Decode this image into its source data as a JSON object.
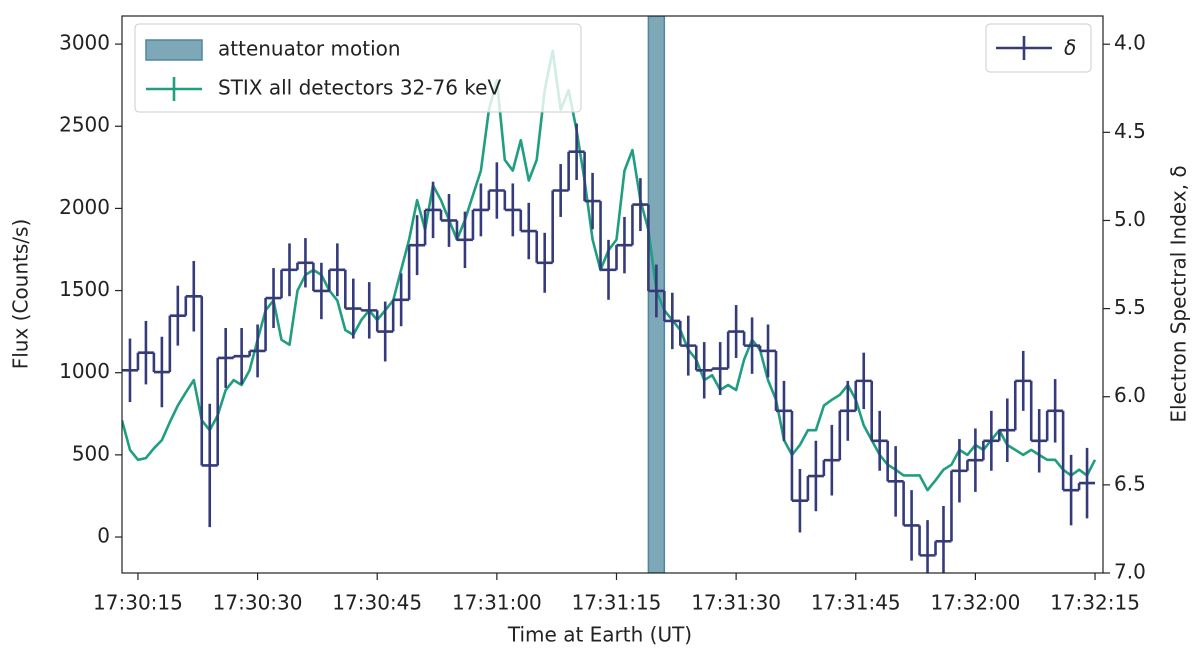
{
  "chart_data": {
    "type": "line",
    "xlabel": "Time at Earth (UT)",
    "ylabel": "Flux (Counts/s)",
    "y2label": "Electron Spectral Index, δ",
    "x": [
      "17:30:13",
      "17:30:14",
      "17:30:15",
      "17:30:16",
      "17:30:17",
      "17:30:18",
      "17:30:19",
      "17:30:20",
      "17:30:21",
      "17:30:22",
      "17:30:23",
      "17:30:24",
      "17:30:25",
      "17:30:26",
      "17:30:27",
      "17:30:28",
      "17:30:29",
      "17:30:30",
      "17:30:31",
      "17:30:32",
      "17:30:33",
      "17:30:34",
      "17:30:35",
      "17:30:36",
      "17:30:37",
      "17:30:38",
      "17:30:39",
      "17:30:40",
      "17:30:41",
      "17:30:42",
      "17:30:43",
      "17:30:44",
      "17:30:45",
      "17:30:46",
      "17:30:47",
      "17:30:48",
      "17:30:49",
      "17:30:50",
      "17:30:51",
      "17:30:52",
      "17:30:53",
      "17:30:54",
      "17:30:55",
      "17:30:56",
      "17:30:57",
      "17:30:58",
      "17:30:59",
      "17:31:00",
      "17:31:01",
      "17:31:02",
      "17:31:03",
      "17:31:04",
      "17:31:05",
      "17:31:06",
      "17:31:07",
      "17:31:08",
      "17:31:09",
      "17:31:10",
      "17:31:11",
      "17:31:12",
      "17:31:13",
      "17:31:14",
      "17:31:15",
      "17:31:16",
      "17:31:17",
      "17:31:18",
      "17:31:19",
      "17:31:20",
      "17:31:21",
      "17:31:22",
      "17:31:23",
      "17:31:24",
      "17:31:25",
      "17:31:26",
      "17:31:27",
      "17:31:28",
      "17:31:29",
      "17:31:30",
      "17:31:31",
      "17:31:32",
      "17:31:33",
      "17:31:34",
      "17:31:35",
      "17:31:36",
      "17:31:37",
      "17:31:38",
      "17:31:39",
      "17:31:40",
      "17:31:41",
      "17:31:42",
      "17:31:43",
      "17:31:44",
      "17:31:45",
      "17:31:46",
      "17:31:47",
      "17:31:48",
      "17:31:49",
      "17:31:50",
      "17:31:51",
      "17:31:52",
      "17:31:53",
      "17:31:54",
      "17:31:55",
      "17:31:56",
      "17:31:57",
      "17:31:58",
      "17:31:59",
      "17:32:00",
      "17:32:01",
      "17:32:02",
      "17:32:03",
      "17:32:04",
      "17:32:05",
      "17:32:06",
      "17:32:07",
      "17:32:08",
      "17:32:09",
      "17:32:10",
      "17:32:11",
      "17:32:12",
      "17:32:13",
      "17:32:14",
      "17:32:15"
    ],
    "xlim": [
      "17:30:13",
      "17:32:16"
    ],
    "xticks": [
      "17:30:15",
      "17:30:30",
      "17:30:45",
      "17:31:00",
      "17:31:15",
      "17:31:30",
      "17:31:45",
      "17:32:00",
      "17:32:15"
    ],
    "ylim": [
      -219,
      3171
    ],
    "yticks": [
      0,
      500,
      1000,
      1500,
      2000,
      2500,
      3000
    ],
    "y2lim": [
      7.0,
      3.84
    ],
    "y2ticks": [
      {
        "value": 4,
        "label": "4.0"
      },
      {
        "value": 4.5,
        "label": "4.5"
      },
      {
        "value": 5,
        "label": "5.0"
      },
      {
        "value": 5.5,
        "label": "5.5"
      },
      {
        "value": 6,
        "label": "6.0"
      },
      {
        "value": 6.5,
        "label": "6.5"
      },
      {
        "value": 7,
        "label": "7.0"
      }
    ],
    "series": [
      {
        "name": "STIX all detectors 32-76 keV",
        "color": "#1f9e80",
        "values": [
          710,
          530,
          470,
          480,
          540,
          590,
          700,
          800,
          880,
          955,
          710,
          650,
          740,
          895,
          955,
          925,
          1015,
          1200,
          1380,
          1440,
          1200,
          1170,
          1500,
          1595,
          1625,
          1595,
          1500,
          1440,
          1260,
          1230,
          1320,
          1380,
          1320,
          1380,
          1440,
          1625,
          1810,
          2050,
          1870,
          2140,
          2050,
          1930,
          1810,
          1930,
          2080,
          2230,
          2600,
          2780,
          2295,
          2230,
          2415,
          2170,
          2295,
          2720,
          2960,
          2600,
          2720,
          2475,
          2170,
          1810,
          1625,
          1745,
          1810,
          2230,
          2355,
          2050,
          1870,
          1500,
          1380,
          1320,
          1260,
          1140,
          1080,
          955,
          985,
          895,
          925,
          895,
          1080,
          1200,
          1140,
          955,
          835,
          590,
          500,
          560,
          650,
          650,
          800,
          835,
          865,
          925,
          835,
          680,
          590,
          500,
          440,
          410,
          375,
          375,
          375,
          285,
          345,
          410,
          440,
          530,
          500,
          560,
          530,
          590,
          650,
          560,
          530,
          500,
          530,
          500,
          470,
          470,
          410,
          375,
          410,
          375,
          470
        ]
      },
      {
        "name": "δ",
        "color": "#343a7a",
        "axis": "y2",
        "x": [
          "17:30:14",
          "17:30:16",
          "17:30:18",
          "17:30:20",
          "17:30:22",
          "17:30:24",
          "17:30:26",
          "17:30:28",
          "17:30:30",
          "17:30:32",
          "17:30:34",
          "17:30:36",
          "17:30:38",
          "17:30:40",
          "17:30:42",
          "17:30:44",
          "17:30:46",
          "17:30:48",
          "17:30:50",
          "17:30:52",
          "17:30:54",
          "17:30:56",
          "17:30:58",
          "17:31:00",
          "17:31:02",
          "17:31:04",
          "17:31:06",
          "17:31:08",
          "17:31:10",
          "17:31:12",
          "17:31:14",
          "17:31:16",
          "17:31:18",
          "17:31:20",
          "17:31:22",
          "17:31:24",
          "17:31:26",
          "17:31:28",
          "17:31:30",
          "17:31:32",
          "17:31:34",
          "17:31:36",
          "17:31:38",
          "17:31:40",
          "17:31:42",
          "17:31:44",
          "17:31:46",
          "17:31:48",
          "17:31:50",
          "17:31:52",
          "17:31:54",
          "17:31:56",
          "17:31:58",
          "17:32:00",
          "17:32:02",
          "17:32:04",
          "17:32:06",
          "17:32:08",
          "17:32:10",
          "17:32:12",
          "17:32:14"
        ],
        "values": [
          5.85,
          5.75,
          5.86,
          5.54,
          5.43,
          6.39,
          5.78,
          5.77,
          5.74,
          5.44,
          5.28,
          5.24,
          5.4,
          5.28,
          5.5,
          5.51,
          5.63,
          5.45,
          5.14,
          4.94,
          5.0,
          5.11,
          4.94,
          4.83,
          4.94,
          5.06,
          5.24,
          4.83,
          4.61,
          4.89,
          5.28,
          5.14,
          4.91,
          5.4,
          5.57,
          5.71,
          5.85,
          5.84,
          5.63,
          5.71,
          5.74,
          6.08,
          6.59,
          6.45,
          6.36,
          6.08,
          5.91,
          6.25,
          6.48,
          6.73,
          6.9,
          6.82,
          6.42,
          6.36,
          6.25,
          6.19,
          5.91,
          6.25,
          6.08,
          6.53,
          6.49
        ],
        "errors": [
          0.18,
          0.18,
          0.2,
          0.17,
          0.2,
          0.35,
          0.17,
          0.16,
          0.15,
          0.17,
          0.15,
          0.14,
          0.16,
          0.15,
          0.17,
          0.16,
          0.17,
          0.15,
          0.17,
          0.16,
          0.15,
          0.16,
          0.15,
          0.16,
          0.15,
          0.16,
          0.17,
          0.15,
          0.16,
          0.16,
          0.17,
          0.16,
          0.15,
          0.15,
          0.16,
          0.17,
          0.16,
          0.15,
          0.15,
          0.16,
          0.15,
          0.17,
          0.18,
          0.2,
          0.2,
          0.17,
          0.16,
          0.17,
          0.2,
          0.2,
          0.2,
          0.2,
          0.18,
          0.18,
          0.17,
          0.18,
          0.17,
          0.18,
          0.18,
          0.2,
          0.2
        ]
      }
    ],
    "spans": [
      {
        "name": "attenuator motion",
        "x": [
          "17:31:19",
          "17:31:21"
        ],
        "color": "#7ea8b8",
        "edgecolor": "#4e879d"
      }
    ]
  }
}
